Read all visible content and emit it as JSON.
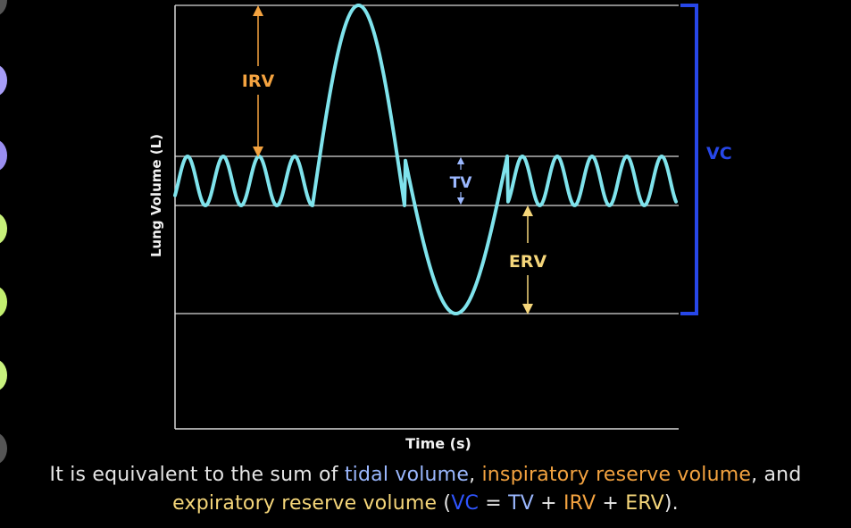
{
  "colors": {
    "background": "#000000",
    "curve": "#7fe3ec",
    "grid": "#d9d9d9",
    "irv": "#f4a340",
    "erv": "#f5d67a",
    "tv": "#9bb8ff",
    "vc": "#2747e8",
    "caption": "#e6e6e6",
    "dots": [
      "#555555",
      "#a79df7",
      "#9a8ef0",
      "#c7f07a",
      "#c2ee6f",
      "#c9f27e",
      "#555555"
    ]
  },
  "diagram": {
    "y_axis_label": "Lung Volume (L)",
    "x_axis_label": "Time (s)",
    "labels": {
      "irv": "IRV",
      "tv": "TV",
      "erv": "ERV",
      "vc": "VC"
    }
  },
  "caption": {
    "line1_prefix": "It is equivalent to the sum of ",
    "tidal_volume": "tidal volume",
    "sep1": ", ",
    "inspiratory_reserve_volume": "inspiratory reserve volume",
    "sep2": ", and",
    "expiratory_reserve_volume": "expiratory reserve volume",
    "open_paren": " (",
    "vc": "VC",
    "equals": " = ",
    "tv": "TV",
    "plus1": " + ",
    "irv": "IRV",
    "plus2": " + ",
    "erv": "ERV",
    "close": ")."
  }
}
